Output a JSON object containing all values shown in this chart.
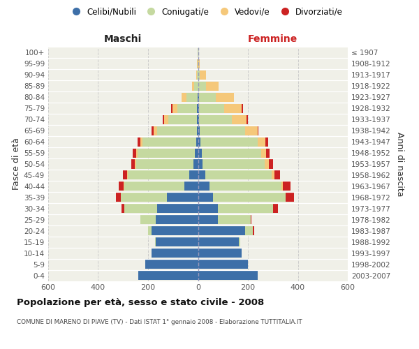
{
  "age_groups": [
    "0-4",
    "5-9",
    "10-14",
    "15-19",
    "20-24",
    "25-29",
    "30-34",
    "35-39",
    "40-44",
    "45-49",
    "50-54",
    "55-59",
    "60-64",
    "65-69",
    "70-74",
    "75-79",
    "80-84",
    "85-89",
    "90-94",
    "95-99",
    "100+"
  ],
  "birth_years": [
    "2003-2007",
    "1998-2002",
    "1993-1997",
    "1988-1992",
    "1983-1987",
    "1978-1982",
    "1973-1977",
    "1968-1972",
    "1963-1967",
    "1958-1962",
    "1953-1957",
    "1948-1952",
    "1943-1947",
    "1938-1942",
    "1933-1937",
    "1928-1932",
    "1923-1927",
    "1918-1922",
    "1913-1917",
    "1908-1912",
    "≤ 1907"
  ],
  "male_celibe": [
    240,
    210,
    185,
    170,
    185,
    170,
    165,
    125,
    55,
    35,
    18,
    12,
    8,
    5,
    4,
    3,
    2,
    0,
    0,
    0,
    0
  ],
  "male_coniugato": [
    0,
    0,
    0,
    2,
    15,
    60,
    130,
    185,
    240,
    245,
    230,
    230,
    215,
    160,
    115,
    80,
    45,
    15,
    5,
    2,
    1
  ],
  "male_vedovo": [
    0,
    0,
    0,
    0,
    0,
    0,
    0,
    0,
    2,
    3,
    4,
    5,
    8,
    12,
    18,
    20,
    20,
    8,
    3,
    1,
    0
  ],
  "male_divorziato": [
    0,
    0,
    0,
    0,
    0,
    0,
    10,
    20,
    20,
    18,
    15,
    14,
    10,
    8,
    5,
    5,
    0,
    0,
    0,
    0,
    0
  ],
  "female_nubile": [
    240,
    200,
    175,
    165,
    190,
    80,
    80,
    60,
    45,
    30,
    18,
    14,
    10,
    8,
    5,
    5,
    5,
    2,
    0,
    0,
    0
  ],
  "female_coniugata": [
    0,
    0,
    0,
    5,
    30,
    130,
    220,
    290,
    290,
    265,
    250,
    240,
    230,
    180,
    130,
    100,
    65,
    30,
    8,
    2,
    1
  ],
  "female_vedova": [
    0,
    0,
    0,
    0,
    0,
    0,
    0,
    0,
    5,
    10,
    15,
    20,
    30,
    50,
    60,
    70,
    75,
    50,
    25,
    5,
    1
  ],
  "female_divorziata": [
    0,
    0,
    0,
    0,
    5,
    5,
    20,
    35,
    30,
    25,
    18,
    12,
    10,
    5,
    5,
    5,
    0,
    0,
    0,
    0,
    0
  ],
  "color_celibe": "#3d6fa8",
  "color_coniugato": "#c5d9a0",
  "color_vedovo": "#f5c87a",
  "color_divorziato": "#cc2222",
  "legend_labels": [
    "Celibi/Nubili",
    "Coniugati/e",
    "Vedovi/e",
    "Divorziati/e"
  ],
  "xlim": 600,
  "title": "Popolazione per età, sesso e stato civile - 2008",
  "subtitle": "COMUNE DI MARENO DI PIAVE (TV) - Dati ISTAT 1° gennaio 2008 - Elaborazione TUTTITALIA.IT",
  "ylabel_left": "Fasce di età",
  "ylabel_right": "Anni di nascita",
  "label_maschi": "Maschi",
  "label_femmine": "Femmine",
  "bg_color": "#f0f0e8",
  "bar_height": 0.82
}
